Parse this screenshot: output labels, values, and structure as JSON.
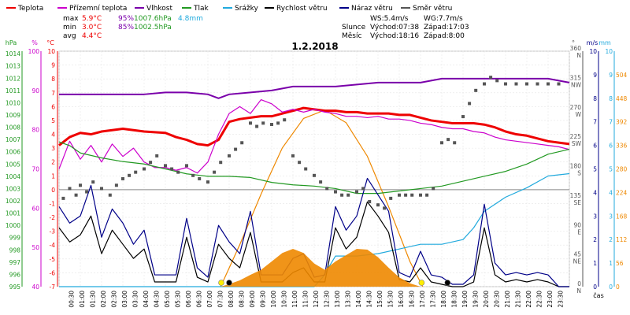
{
  "header": {
    "legend": [
      {
        "label": "Teplota",
        "color": "#ee0000"
      },
      {
        "label": "Přízemní teplota",
        "color": "#cc00cc"
      },
      {
        "label": "Vlhkost",
        "color": "#7a00aa"
      },
      {
        "label": "Tlak",
        "color": "#229922"
      },
      {
        "label": "Srážky",
        "color": "#22aadd"
      },
      {
        "label": "Rychlost větru",
        "color": "#000000"
      },
      {
        "label": "Náraz větru",
        "color": "#000088"
      },
      {
        "label": "Směr větru",
        "color": "#555555"
      }
    ],
    "stats": {
      "max_label": "max",
      "max_temp": "5.9°C",
      "max_hum": "95%",
      "max_press": "1007.6hPa",
      "max_rain": "4.8mm",
      "min_label": "min",
      "min_temp": "3.0°C",
      "min_hum": "85%",
      "min_press": "1002.5hPa",
      "avg_label": "avg",
      "avg_temp": "4.4°C"
    },
    "wind": {
      "ws": "WS:5.4m/s",
      "wg": "WG:7.7m/s"
    },
    "sun": {
      "label": "Slunce",
      "rise": "Východ:07:38",
      "set": "Západ:17:03"
    },
    "moon": {
      "label": "Měsíc",
      "rise": "Východ:18:16",
      "set": "Západ:8:00"
    },
    "date": "1.2.2018"
  },
  "chart_data": {
    "type": "line",
    "title": "1.2.2018",
    "x_ticks": [
      "00:30",
      "01:00",
      "01:30",
      "02:00",
      "02:30",
      "03:00",
      "03:30",
      "04:00",
      "04:30",
      "05:00",
      "05:30",
      "06:00",
      "06:30",
      "07:00",
      "07:30",
      "08:00",
      "08:30",
      "09:00",
      "09:30",
      "10:00",
      "10:30",
      "11:00",
      "11:30",
      "12:00",
      "12:30",
      "13:00",
      "13:30",
      "14:00",
      "14:30",
      "15:00",
      "15:30",
      "16:00",
      "16:30",
      "17:00",
      "17:30",
      "18:00",
      "18:30",
      "19:00",
      "19:30",
      "20:00",
      "20:30",
      "21:00",
      "21:30",
      "22:00",
      "22:30",
      "23:00",
      "23:30"
    ],
    "xlabel": "čas",
    "axes": {
      "pressure": {
        "label": "hPa",
        "ticks": [
          995,
          996,
          997,
          998,
          999,
          1000,
          1001,
          1002,
          1003,
          1004,
          1005,
          1006,
          1007,
          1008,
          1009,
          1010,
          1011,
          1012,
          1013,
          1014
        ]
      },
      "humidity": {
        "label": "%",
        "ticks": [
          40,
          50,
          60,
          70,
          80,
          90,
          100
        ]
      },
      "temperature": {
        "label": "°C",
        "ticks": [
          -7,
          -6,
          -5,
          -4,
          -3,
          -2,
          -1,
          0,
          1,
          2,
          3,
          4,
          5,
          6,
          7,
          8,
          9,
          10
        ]
      },
      "direction": {
        "label": "°",
        "ticks": [
          0,
          45,
          90,
          135,
          180,
          225,
          270,
          315,
          360
        ],
        "cardinals": [
          "N",
          "NE",
          "E",
          "SE",
          "S",
          "SW",
          "W",
          "NW",
          "N"
        ]
      },
      "wind_speed": {
        "label": "m/s",
        "ticks": [
          0,
          1,
          2,
          3,
          4,
          5,
          6,
          7,
          8,
          9,
          10
        ]
      },
      "rain": {
        "label": "mm",
        "ticks": [
          0,
          1,
          2,
          3,
          4,
          5,
          6,
          7,
          8,
          9,
          10
        ]
      },
      "radiation": {
        "ticks": [
          0,
          56,
          112,
          168,
          224,
          280,
          336,
          392,
          448,
          504
        ]
      }
    },
    "series": [
      {
        "name": "Teplota",
        "unit": "°C",
        "color": "#ee0000",
        "x": [
          0,
          0.5,
          1,
          1.5,
          2,
          3,
          4,
          5,
          5.5,
          6,
          6.5,
          7,
          7.5,
          8,
          8.5,
          9,
          9.5,
          10,
          10.5,
          11,
          11.5,
          12,
          12.5,
          13,
          13.5,
          14,
          14.5,
          15,
          15.5,
          16,
          16.5,
          17,
          17.5,
          18,
          18.5,
          19,
          19.5,
          20,
          20.5,
          21,
          21.5,
          22,
          22.5,
          23,
          23.5,
          24
        ],
        "y": [
          3.2,
          3.8,
          4.1,
          4.0,
          4.2,
          4.4,
          4.2,
          4.1,
          3.8,
          3.6,
          3.3,
          3.2,
          3.6,
          4.9,
          5.1,
          5.2,
          5.3,
          5.3,
          5.5,
          5.7,
          5.9,
          5.8,
          5.7,
          5.7,
          5.6,
          5.6,
          5.5,
          5.5,
          5.5,
          5.4,
          5.4,
          5.2,
          5.0,
          4.9,
          4.8,
          4.8,
          4.8,
          4.7,
          4.5,
          4.2,
          4.0,
          3.9,
          3.7,
          3.5,
          3.4,
          3.3
        ]
      },
      {
        "name": "Přízemní teplota",
        "unit": "°C",
        "color": "#cc00cc",
        "x": [
          0,
          0.5,
          1,
          1.5,
          2,
          2.5,
          3,
          3.5,
          4,
          4.5,
          5,
          5.5,
          6,
          6.5,
          7,
          7.5,
          8,
          8.5,
          9,
          9.5,
          10,
          10.5,
          11,
          11.5,
          12,
          12.5,
          13,
          13.5,
          14,
          14.5,
          15,
          15.5,
          16,
          16.5,
          17,
          17.5,
          18,
          18.5,
          19,
          19.5,
          20,
          20.5,
          21,
          21.5,
          22,
          22.5,
          23,
          23.5,
          24
        ],
        "y": [
          1.5,
          3.5,
          2.2,
          3.2,
          2.0,
          3.3,
          2.4,
          3.0,
          2.0,
          1.6,
          1.6,
          1.4,
          1.6,
          1.2,
          2.0,
          4.0,
          5.5,
          6.0,
          5.5,
          6.5,
          6.2,
          5.6,
          5.8,
          5.6,
          5.8,
          5.6,
          5.5,
          5.3,
          5.3,
          5.2,
          5.3,
          5.1,
          5.1,
          5.0,
          4.8,
          4.7,
          4.5,
          4.4,
          4.4,
          4.2,
          4.1,
          3.8,
          3.6,
          3.5,
          3.4,
          3.3,
          3.2,
          3.1,
          2.9
        ]
      },
      {
        "name": "Vlhkost",
        "unit": "%",
        "color": "#7a00aa",
        "x": [
          0,
          1,
          2,
          3,
          4,
          5,
          6,
          7,
          7.5,
          8,
          9,
          10,
          11,
          12,
          13,
          14,
          15,
          16,
          17,
          18,
          19,
          20,
          21,
          22,
          23,
          24
        ],
        "y": [
          89,
          89,
          89,
          89,
          89,
          89.5,
          89.5,
          89,
          88,
          89,
          89.5,
          90,
          91,
          91,
          91,
          91.5,
          92,
          92,
          92,
          93,
          93,
          93,
          93,
          93,
          93,
          92
        ]
      },
      {
        "name": "Tlak",
        "unit": "hPa",
        "color": "#229922",
        "x": [
          0,
          0.5,
          1,
          2,
          3,
          4,
          5,
          6,
          7,
          8,
          9,
          10,
          11,
          12,
          13,
          14,
          15,
          16,
          17,
          18,
          19,
          20,
          21,
          22,
          23,
          24
        ],
        "y": [
          1006.8,
          1006.5,
          1005.9,
          1005.5,
          1005.2,
          1005.0,
          1004.6,
          1004.2,
          1004.0,
          1004.0,
          1003.9,
          1003.5,
          1003.3,
          1003.2,
          1003.0,
          1002.6,
          1002.6,
          1002.8,
          1003.0,
          1003.2,
          1003.6,
          1004.0,
          1004.4,
          1005.0,
          1005.8,
          1006.2
        ]
      },
      {
        "name": "Srážky",
        "unit": "mm",
        "color": "#22aadd",
        "x": [
          0,
          12,
          12.4,
          13,
          14,
          15,
          16,
          17,
          18,
          19,
          19.5,
          20,
          21,
          22,
          23,
          24
        ],
        "y": [
          0,
          0,
          0.4,
          1.3,
          1.3,
          1.4,
          1.6,
          1.8,
          1.8,
          2.0,
          2.5,
          3.2,
          3.8,
          4.2,
          4.7,
          4.8
        ]
      },
      {
        "name": "Rychlost větru",
        "unit": "m/s",
        "color": "#000000",
        "x": [
          0,
          0.5,
          1,
          1.5,
          2,
          2.5,
          3,
          3.5,
          4,
          4.5,
          5,
          5.5,
          6,
          6.5,
          7,
          7.5,
          8,
          8.5,
          9,
          9.5,
          10,
          10.5,
          11,
          11.5,
          12,
          12.5,
          13,
          13.5,
          14,
          14.5,
          15,
          15.5,
          16,
          16.5,
          17,
          17.5,
          18,
          18.5,
          19,
          19.5,
          20,
          20.5,
          21,
          21.5,
          22,
          22.5,
          23,
          23.5,
          24
        ],
        "y": [
          2.5,
          1.9,
          2.2,
          3.0,
          1.4,
          2.4,
          1.8,
          1.2,
          1.6,
          0.2,
          0.2,
          0.2,
          2.1,
          0.4,
          0.2,
          1.8,
          1.2,
          0.8,
          2.3,
          0.2,
          0.2,
          0.2,
          0.6,
          0.8,
          0.2,
          0.2,
          2.5,
          1.6,
          2.1,
          3.6,
          3.0,
          2.3,
          0.3,
          0.2,
          0.8,
          0.2,
          0.1,
          0,
          0,
          0.2,
          2.5,
          0.5,
          0.2,
          0.3,
          0.2,
          0.3,
          0.2,
          0,
          0
        ]
      },
      {
        "name": "Náraz větru",
        "unit": "m/s",
        "color": "#000088",
        "x": [
          0,
          0.5,
          1,
          1.5,
          2,
          2.5,
          3,
          3.5,
          4,
          4.5,
          5,
          5.5,
          6,
          6.5,
          7,
          7.5,
          8,
          8.5,
          9,
          9.5,
          10,
          10.5,
          11,
          11.5,
          12,
          12.5,
          13,
          13.5,
          14,
          14.5,
          15,
          15.5,
          16,
          16.5,
          17,
          17.5,
          18,
          18.5,
          19,
          19.5,
          20,
          20.5,
          21,
          21.5,
          22,
          22.5,
          23,
          23.5,
          24
        ],
        "y": [
          3.4,
          2.7,
          3.0,
          4.3,
          2.1,
          3.3,
          2.7,
          1.8,
          2.4,
          0.5,
          0.5,
          0.5,
          2.9,
          0.8,
          0.4,
          2.6,
          1.9,
          1.4,
          3.2,
          0.5,
          0.5,
          0.5,
          1.2,
          1.4,
          0.4,
          0.5,
          3.4,
          2.4,
          3.0,
          4.6,
          3.9,
          3.2,
          0.6,
          0.4,
          1.5,
          0.5,
          0.4,
          0.1,
          0.1,
          0.5,
          3.5,
          1.0,
          0.5,
          0.6,
          0.5,
          0.6,
          0.5,
          0,
          0
        ]
      },
      {
        "name": "Směr větru",
        "unit": "°",
        "color": "#555555",
        "style": "points",
        "x": [
          0.2,
          0.5,
          0.8,
          1.0,
          1.3,
          1.6,
          2.0,
          2.4,
          2.7,
          3.0,
          3.3,
          3.6,
          4.0,
          4.3,
          4.6,
          5.0,
          5.3,
          5.6,
          6.0,
          6.3,
          6.6,
          7.0,
          7.3,
          7.6,
          8.0,
          8.3,
          8.6,
          9.0,
          9.3,
          9.6,
          10.0,
          10.3,
          10.6,
          11.0,
          11.3,
          11.6,
          12.0,
          12.3,
          12.6,
          13.0,
          13.3,
          13.6,
          14.0,
          14.3,
          14.6,
          15.0,
          15.3,
          15.6,
          16.0,
          16.3,
          16.6,
          17.0,
          17.3,
          17.6,
          18.0,
          18.3,
          18.6,
          19.0,
          19.3,
          19.6,
          20.0,
          20.3,
          20.6,
          21.0,
          21.5,
          22.0,
          22.5,
          23.0,
          23.5
        ],
        "y": [
          135,
          150,
          140,
          155,
          145,
          160,
          150,
          140,
          155,
          165,
          170,
          175,
          180,
          190,
          200,
          185,
          180,
          175,
          185,
          170,
          165,
          160,
          175,
          190,
          200,
          210,
          220,
          250,
          245,
          250,
          248,
          250,
          255,
          200,
          190,
          180,
          170,
          160,
          150,
          145,
          140,
          140,
          145,
          150,
          130,
          125,
          120,
          135,
          140,
          140,
          140,
          140,
          140,
          150,
          220,
          225,
          220,
          260,
          280,
          300,
          310,
          320,
          315,
          310,
          310,
          310,
          310,
          310,
          310
        ]
      },
      {
        "name": "Solar",
        "unit": "",
        "color": "#ee8800",
        "style": "area",
        "x": [
          7.6,
          8,
          8.5,
          9,
          9.5,
          10,
          10.5,
          11,
          11.5,
          12,
          12.5,
          13,
          13.5,
          14,
          14.5,
          15,
          15.5,
          16,
          16.5,
          17
        ],
        "y": [
          0,
          6,
          15,
          28,
          40,
          60,
          80,
          90,
          80,
          55,
          40,
          60,
          75,
          90,
          88,
          70,
          45,
          22,
          8,
          0
        ]
      }
    ],
    "theoretical_radiation": {
      "name": "Theoretical radiation",
      "color": "#ee8800",
      "x": [
        7.6,
        8.5,
        9.5,
        10.5,
        11.5,
        12.5,
        13.5,
        14.5,
        15.5,
        16.5,
        17.1
      ],
      "y": [
        0,
        100,
        220,
        330,
        400,
        420,
        390,
        310,
        190,
        60,
        0
      ]
    },
    "markers": [
      {
        "type": "sunrise",
        "x": 7.63,
        "color": "#ffee00"
      },
      {
        "type": "moonset",
        "x": 8.0,
        "color": "#000000"
      },
      {
        "type": "sunset",
        "x": 17.05,
        "color": "#ffee00"
      },
      {
        "type": "moonrise",
        "x": 18.27,
        "color": "#000000"
      }
    ]
  }
}
